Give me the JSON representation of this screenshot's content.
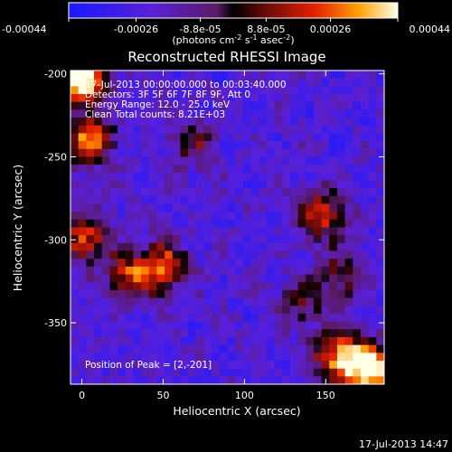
{
  "chart_data": {
    "type": "heatmap",
    "title": "Reconstructed RHESSI Image",
    "xlabel": "Heliocentric X (arcsec)",
    "ylabel": "Heliocentric Y (arcsec)",
    "xlim": [
      -7,
      186
    ],
    "ylim": [
      -387,
      -198
    ],
    "xticks": [
      0,
      50,
      100,
      150
    ],
    "yticks": [
      -200,
      -250,
      -300,
      -350
    ],
    "colorbar": {
      "min": -0.00044,
      "max": 0.00044,
      "ticks": [
        "-0.00044",
        "-0.00026",
        "-8.8e-05",
        "8.8e-05",
        "0.00026",
        "0.00044"
      ],
      "tick_values": [
        -0.00044,
        -0.00026,
        -8.8e-05,
        8.8e-05,
        0.00026,
        0.00044
      ],
      "units_prefix": "(photons cm",
      "units_sup1": "-2",
      "units_mid1": " s",
      "units_sup2": "-1",
      "units_mid2": " asec",
      "units_sup3": "-2",
      "units_suffix": ")"
    },
    "annotations": [
      "17-Jul-2013 00:00:00.000 to 00:03:40.000",
      "Detectors: 3F 5F 6F 7F 8F 9F, Att 0",
      "Energy Range: 12.0 - 25.0 keV",
      "Clean    Total counts: 8.21E+03"
    ],
    "peak_label": "Position of Peak = [2,-201]",
    "peak": [
      2,
      -201
    ],
    "bright_sources": [
      {
        "x": 0,
        "y": -203,
        "level": 1.0
      },
      {
        "x": 178,
        "y": -378,
        "level": 1.0
      },
      {
        "x": 158,
        "y": -370,
        "level": 0.75
      },
      {
        "x": 5,
        "y": -240,
        "level": 0.7
      },
      {
        "x": 2,
        "y": -300,
        "level": 0.6
      },
      {
        "x": 50,
        "y": -316,
        "level": 0.6
      },
      {
        "x": 30,
        "y": -322,
        "level": 0.55
      },
      {
        "x": 147,
        "y": -285,
        "level": 0.6
      },
      {
        "x": 160,
        "y": -322,
        "level": 0.4
      },
      {
        "x": 68,
        "y": -242,
        "level": 0.35
      },
      {
        "x": 135,
        "y": -338,
        "level": 0.35
      }
    ]
  },
  "footer": {
    "date": "17-Jul-2013 14:47"
  }
}
